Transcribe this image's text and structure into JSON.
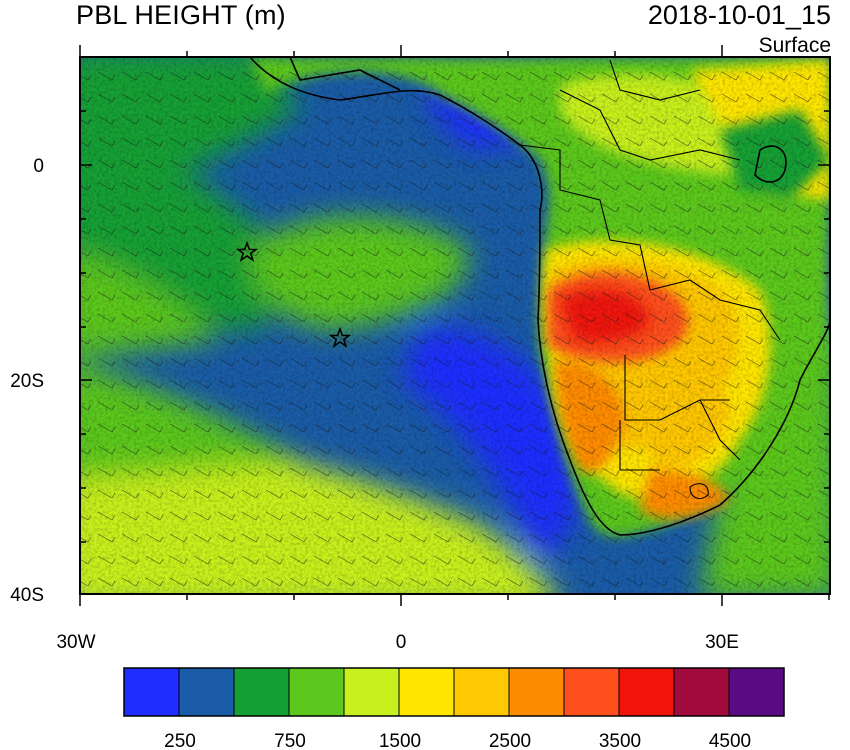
{
  "title": "PBL HEIGHT (m)",
  "datetime": "2018-10-01_15",
  "level": "Surface",
  "axes": {
    "lat_ticks": [
      "0",
      "20S",
      "40S"
    ],
    "lon_ticks": [
      "30W",
      "0",
      "30E"
    ]
  },
  "colorbar": {
    "labels": [
      "250",
      "750",
      "1500",
      "2500",
      "3500",
      "4500"
    ],
    "colors": [
      "#1f2dff",
      "#1a5ca8",
      "#14a035",
      "#5cc81e",
      "#c8f01e",
      "#ffe600",
      "#ffc800",
      "#ff8c00",
      "#ff501e",
      "#f0140a",
      "#a00a3c",
      "#5a0a82"
    ]
  },
  "markers": [
    {
      "name": "star-marker-1",
      "lon": -14.5,
      "lat": -8
    },
    {
      "name": "star-marker-2",
      "lon": -5.5,
      "lat": -16
    }
  ]
}
